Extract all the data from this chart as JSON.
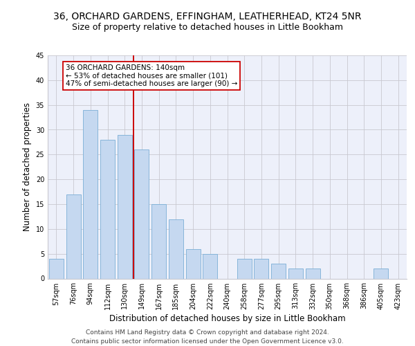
{
  "title_line1": "36, ORCHARD GARDENS, EFFINGHAM, LEATHERHEAD, KT24 5NR",
  "title_line2": "Size of property relative to detached houses in Little Bookham",
  "xlabel": "Distribution of detached houses by size in Little Bookham",
  "ylabel": "Number of detached properties",
  "categories": [
    "57sqm",
    "76sqm",
    "94sqm",
    "112sqm",
    "130sqm",
    "149sqm",
    "167sqm",
    "185sqm",
    "204sqm",
    "222sqm",
    "240sqm",
    "258sqm",
    "277sqm",
    "295sqm",
    "313sqm",
    "332sqm",
    "350sqm",
    "368sqm",
    "386sqm",
    "405sqm",
    "423sqm"
  ],
  "values": [
    4,
    17,
    34,
    28,
    29,
    26,
    15,
    12,
    6,
    5,
    0,
    4,
    4,
    3,
    2,
    2,
    0,
    0,
    0,
    2,
    0
  ],
  "bar_color": "#c5d8f0",
  "bar_edge_color": "#7aaed6",
  "vline_idx": 4,
  "vline_color": "#cc0000",
  "annotation_text": "36 ORCHARD GARDENS: 140sqm\n← 53% of detached houses are smaller (101)\n47% of semi-detached houses are larger (90) →",
  "annotation_box_color": "#ffffff",
  "annotation_box_edge": "#cc0000",
  "ylim": [
    0,
    45
  ],
  "yticks": [
    0,
    5,
    10,
    15,
    20,
    25,
    30,
    35,
    40,
    45
  ],
  "grid_color": "#c8c8d0",
  "bg_color": "#edf0fa",
  "footer": "Contains HM Land Registry data © Crown copyright and database right 2024.\nContains public sector information licensed under the Open Government Licence v3.0.",
  "title_fontsize": 10,
  "subtitle_fontsize": 9,
  "axis_label_fontsize": 8.5,
  "tick_fontsize": 7,
  "footer_fontsize": 6.5,
  "annotation_fontsize": 7.5
}
